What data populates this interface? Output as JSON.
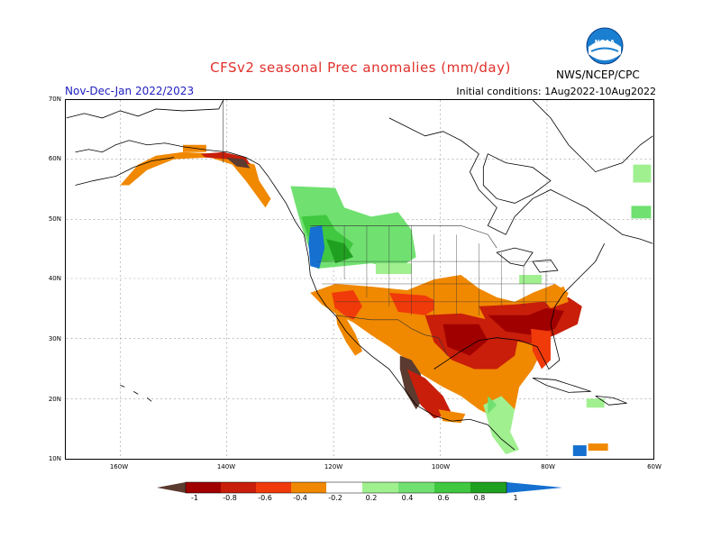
{
  "header": {
    "title": "CFSv2 seasonal Prec anomalies (mm/day)",
    "period": "Nov-Dec-Jan 2022/2023",
    "initial_conditions": "Initial conditions: 1Aug2022-10Aug2022",
    "agency": "NWS/NCEP/CPC",
    "title_color": "#e0302a",
    "period_color": "#2020c0"
  },
  "axes": {
    "lat_labels": [
      "70N",
      "60N",
      "50N",
      "40N",
      "30N",
      "20N",
      "10N"
    ],
    "lon_labels": [
      "160W",
      "140W",
      "120W",
      "100W",
      "80W",
      "60W"
    ]
  },
  "legend": {
    "labels": [
      "-1",
      "-0.8",
      "-0.6",
      "-0.4",
      "-0.2",
      "0.2",
      "0.4",
      "0.6",
      "0.8",
      "1"
    ],
    "colors": [
      "#5b3a2f",
      "#a00000",
      "#c81e0a",
      "#f03a0a",
      "#f08800",
      "#ffffff",
      "#a0f090",
      "#70e070",
      "#40c840",
      "#20a020",
      "#1570d0"
    ]
  },
  "map_regions": [
    {
      "name": "southeast-us-dry",
      "category": "-0.8"
    },
    {
      "name": "texas-dry",
      "category": "-0.6"
    },
    {
      "name": "mexico-dry",
      "category": "-0.4"
    },
    {
      "name": "baja-dry",
      "category": "-1"
    },
    {
      "name": "pacific-northwest-wet",
      "category": "0.6"
    },
    {
      "name": "washington-coast-wet",
      "category": "1"
    },
    {
      "name": "alaska-coast-dry",
      "category": "-0.4"
    },
    {
      "name": "caribbean-wet",
      "category": "0.4"
    }
  ]
}
